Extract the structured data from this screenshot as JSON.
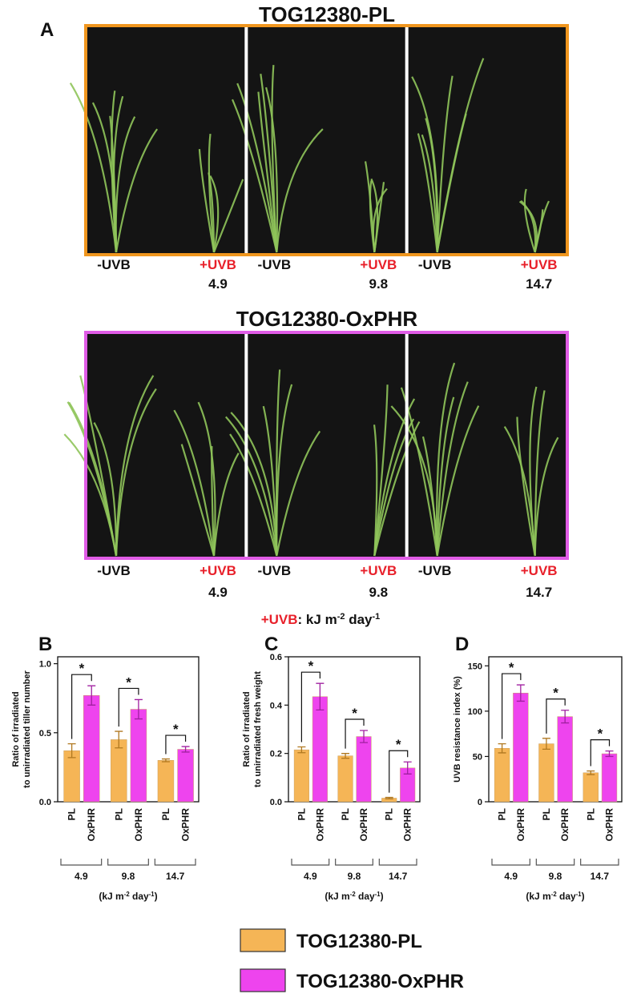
{
  "panel_labels": [
    "A",
    "B",
    "C",
    "D"
  ],
  "panel_a": {
    "rows": [
      {
        "title": "TOG12380-PL",
        "border_color": "#f0961e"
      },
      {
        "title": "TOG12380-OxPHR",
        "border_color": "#e05ce6"
      }
    ],
    "control_label": "-UVB",
    "treatment_label": "+UVB",
    "doses": [
      "4.9",
      "9.8",
      "14.7"
    ],
    "unit_note": {
      "treatment": "+UVB",
      "parts": [
        ": kJ m",
        "-2",
        " day",
        "-1"
      ]
    }
  },
  "chart_data": [
    {
      "type": "bar",
      "ylabel": [
        "Ratio of irradiated",
        "to unirradiated tiller number"
      ],
      "categories": [
        "4.9",
        "9.8",
        "14.7"
      ],
      "xlabel": [
        "(kJ m",
        "-2",
        " day",
        "-1",
        ")"
      ],
      "bar_labels": [
        "PL",
        "OxPHR"
      ],
      "significance_labels": [
        "*",
        "*",
        "*"
      ],
      "ylim": [
        0,
        1.05
      ],
      "yticks": [
        {
          "value": 0,
          "label": "0.0"
        },
        {
          "value": 0.5,
          "label": "0.5"
        },
        {
          "value": 1,
          "label": "1.0"
        }
      ],
      "series": [
        {
          "name": "TOG12380-PL",
          "color": "#f5b556",
          "values": [
            0.37,
            0.45,
            0.3
          ],
          "errors": [
            0.05,
            0.06,
            0.01
          ]
        },
        {
          "name": "TOG12380-OxPHR",
          "color": "#ee44ee",
          "values": [
            0.77,
            0.67,
            0.38
          ],
          "errors": [
            0.07,
            0.07,
            0.02
          ]
        }
      ]
    },
    {
      "type": "bar",
      "ylabel": [
        "Ratio of irradiated",
        "to unirradiated fresh weight"
      ],
      "categories": [
        "4.9",
        "9.8",
        "14.7"
      ],
      "xlabel": [
        "(kJ m",
        "-2",
        " day",
        "-1",
        ")"
      ],
      "bar_labels": [
        "PL",
        "OxPHR"
      ],
      "significance_labels": [
        "*",
        "*",
        "*"
      ],
      "ylim": [
        0,
        0.6
      ],
      "yticks": [
        {
          "value": 0,
          "label": "0.0"
        },
        0.2,
        0.4,
        0.6
      ],
      "series": [
        {
          "name": "TOG12380-PL",
          "color": "#f5b556",
          "values": [
            0.215,
            0.19,
            0.015
          ],
          "errors": [
            0.012,
            0.01,
            0.003
          ]
        },
        {
          "name": "TOG12380-OxPHR",
          "color": "#ee44ee",
          "values": [
            0.435,
            0.27,
            0.14
          ],
          "errors": [
            0.055,
            0.025,
            0.025
          ]
        }
      ]
    },
    {
      "type": "bar",
      "ylabel": [
        "UVB resistance index (%)"
      ],
      "categories": [
        "4.9",
        "9.8",
        "14.7"
      ],
      "xlabel": [
        "(kJ m",
        "-2",
        " day",
        "-1",
        ")"
      ],
      "bar_labels": [
        "PL",
        "OxPHR"
      ],
      "significance_labels": [
        "*",
        "*",
        "*"
      ],
      "ylim": [
        0,
        160
      ],
      "yticks": [
        0,
        50,
        100,
        150
      ],
      "series": [
        {
          "name": "TOG12380-PL",
          "color": "#f5b556",
          "values": [
            59,
            64,
            32
          ],
          "errors": [
            5,
            6,
            2
          ]
        },
        {
          "name": "TOG12380-OxPHR",
          "color": "#ee44ee",
          "values": [
            120,
            94,
            53
          ],
          "errors": [
            9,
            7,
            3
          ]
        }
      ]
    }
  ]
}
